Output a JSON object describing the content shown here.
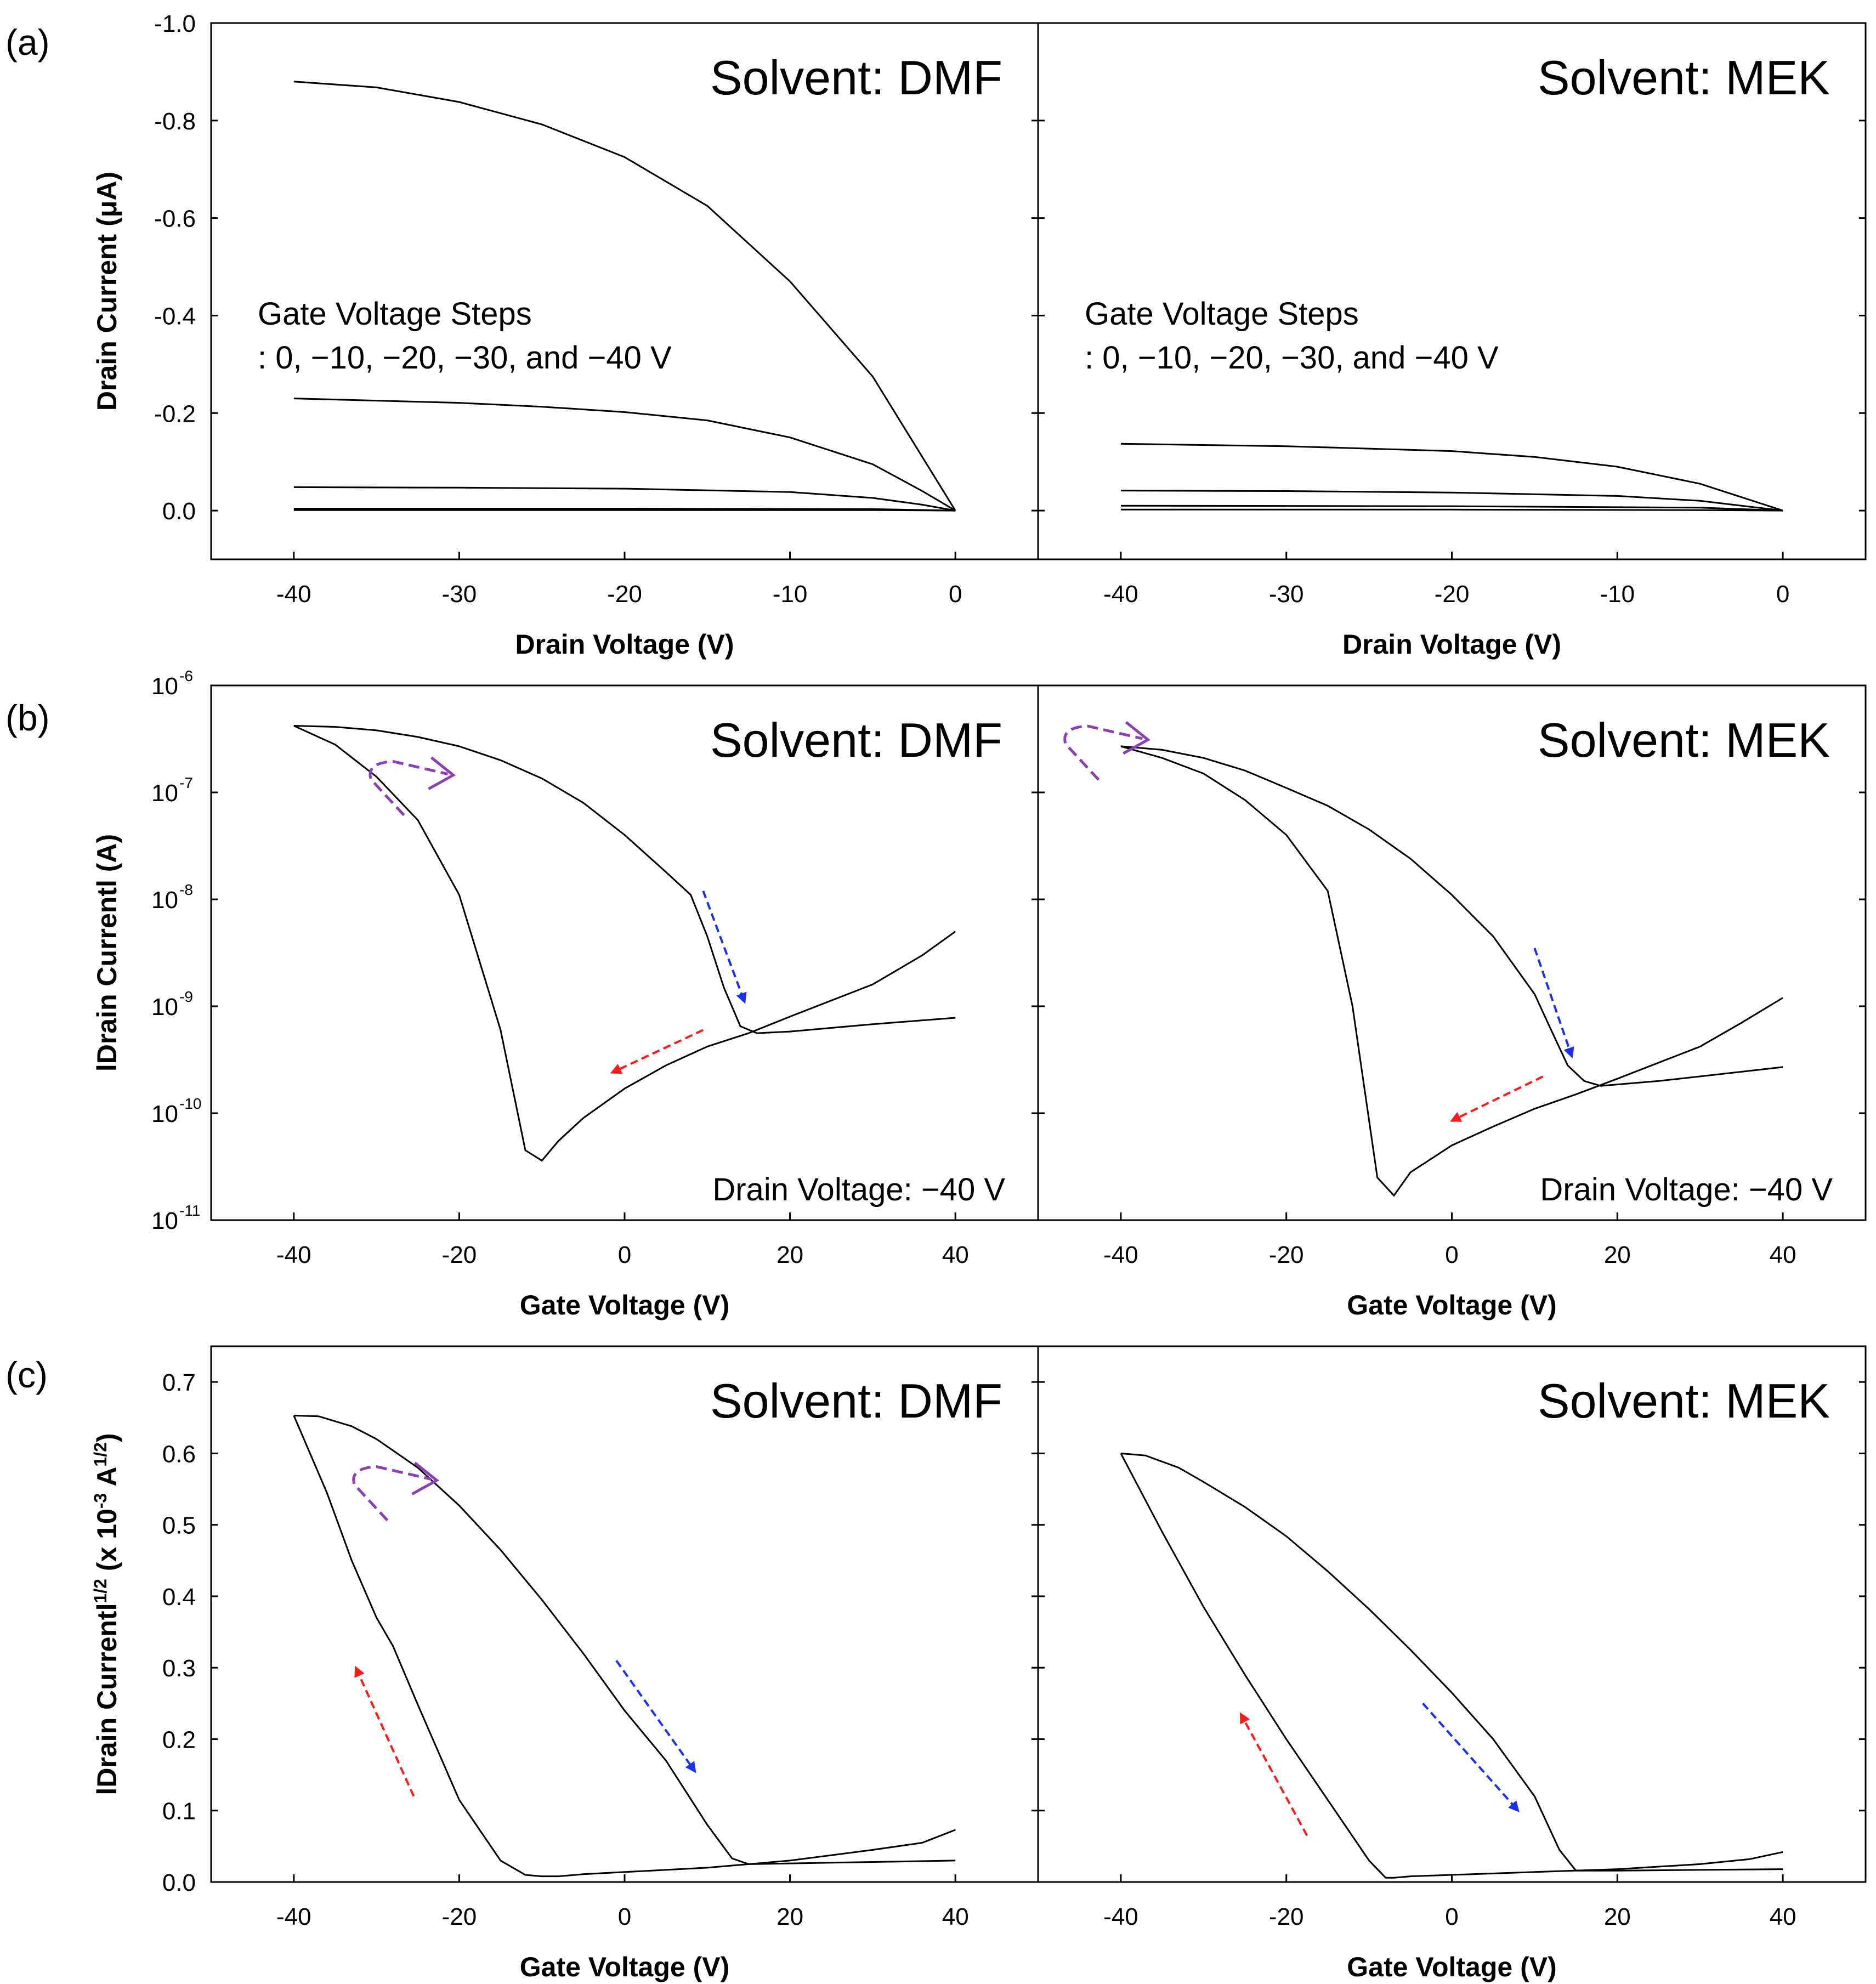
{
  "colors": {
    "background": "#ffffff",
    "curve": "#000000",
    "forward_arrow": "#1a2ff0",
    "reverse_arrow": "#ff1a1a",
    "sweep_direction_arrow": "#8a3fb5"
  },
  "panel_labels": [
    "(a)",
    "(b)",
    "(c)"
  ],
  "chart_data": [
    {
      "id": "a",
      "type": "line",
      "title": "Solvent: DMF",
      "xlabel": "Drain Voltage (V)",
      "ylabel": "Drain Current (μA)",
      "xlim": [
        -45,
        5
      ],
      "ylim": [
        0.1,
        -1.0
      ],
      "xticks": [
        -40,
        -30,
        -20,
        -10,
        0
      ],
      "yticks": [
        0.0,
        -0.2,
        -0.4,
        -0.6,
        -0.8,
        -1.0
      ],
      "ytick_labels": [
        "0.0",
        "-0.2",
        "-0.4",
        "-0.6",
        "-0.8",
        "-1.0"
      ],
      "annotation": [
        "Gate Voltage Steps",
        ": 0, −10, −20, −30, and −40 V"
      ],
      "series": [
        {
          "x": [
            -40,
            -35,
            -30,
            -25,
            -20,
            -15,
            -10,
            -5,
            -2,
            0
          ],
          "y": [
            -0.88,
            -0.868,
            -0.838,
            -0.792,
            -0.725,
            -0.625,
            -0.47,
            -0.275,
            -0.11,
            0.0
          ]
        },
        {
          "x": [
            -40,
            -30,
            -25,
            -20,
            -15,
            -10,
            -5,
            -2,
            0
          ],
          "y": [
            -0.23,
            -0.221,
            -0.213,
            -0.202,
            -0.185,
            -0.15,
            -0.095,
            -0.04,
            0.0
          ]
        },
        {
          "x": [
            -40,
            -30,
            -20,
            -10,
            -5,
            -2,
            0
          ],
          "y": [
            -0.048,
            -0.047,
            -0.045,
            -0.038,
            -0.026,
            -0.012,
            0.0
          ]
        },
        {
          "x": [
            -40,
            -20,
            -5,
            0
          ],
          "y": [
            -0.004,
            -0.004,
            -0.003,
            0.0
          ]
        },
        {
          "x": [
            -40,
            -20,
            -5,
            0
          ],
          "y": [
            -0.001,
            -0.001,
            -0.001,
            0.0
          ]
        }
      ]
    },
    {
      "id": "a2",
      "type": "line",
      "title": "Solvent: MEK",
      "xlabel": "Drain Voltage (V)",
      "xlim": [
        -45,
        5
      ],
      "ylim": [
        0.1,
        -1.0
      ],
      "xticks": [
        -40,
        -30,
        -20,
        -10,
        0
      ],
      "yticks": [
        0.0,
        -0.2,
        -0.4,
        -0.6,
        -0.8,
        -1.0
      ],
      "annotation": [
        "Gate Voltage Steps",
        ": 0, −10, −20, −30, and −40 V"
      ],
      "series": [
        {
          "x": [
            -40,
            -30,
            -20,
            -15,
            -10,
            -5,
            -2,
            0
          ],
          "y": [
            -0.137,
            -0.132,
            -0.122,
            -0.11,
            -0.09,
            -0.055,
            -0.022,
            0.0
          ]
        },
        {
          "x": [
            -40,
            -30,
            -20,
            -10,
            -5,
            -2,
            0
          ],
          "y": [
            -0.041,
            -0.04,
            -0.037,
            -0.03,
            -0.02,
            -0.008,
            0.0
          ]
        },
        {
          "x": [
            -40,
            -20,
            -5,
            0
          ],
          "y": [
            -0.01,
            -0.009,
            -0.006,
            0.0
          ]
        },
        {
          "x": [
            -40,
            -20,
            -5,
            0
          ],
          "y": [
            -0.002,
            -0.002,
            -0.001,
            0.0
          ]
        }
      ]
    },
    {
      "id": "b",
      "type": "line",
      "yscale": "log",
      "title": "Solvent: DMF",
      "xlabel": "Gate Voltage (V)",
      "ylabel": "lDrain Currentl (A)",
      "xlim": [
        -50,
        50
      ],
      "ylim": [
        1e-11,
        1e-06
      ],
      "xticks": [
        -40,
        -20,
        0,
        20,
        40
      ],
      "yticks": [
        1e-11,
        1e-10,
        1e-09,
        1e-08,
        1e-07,
        1e-06
      ],
      "ytick_labels": [
        [
          "10",
          "-11"
        ],
        [
          "10",
          "-10"
        ],
        [
          "10",
          "-9"
        ],
        [
          "10",
          "-8"
        ],
        [
          "10",
          "-7"
        ],
        [
          "10",
          "-6"
        ]
      ],
      "annotation": [
        "Drain Voltage: −40 V"
      ],
      "series": [
        {
          "name": "forward",
          "x": [
            -40,
            -35,
            -30,
            -25,
            -20,
            -15,
            -10,
            -5,
            0,
            5,
            8,
            10,
            12,
            14,
            16,
            20,
            30,
            40
          ],
          "y": [
            4.2e-07,
            4.1e-07,
            3.8e-07,
            3.3e-07,
            2.7e-07,
            2e-07,
            1.35e-07,
            8e-08,
            4e-08,
            1.8e-08,
            1.1e-08,
            4.5e-09,
            1.5e-09,
            6.5e-10,
            5.6e-10,
            5.8e-10,
            6.8e-10,
            7.8e-10
          ]
        },
        {
          "name": "reverse",
          "x": [
            40,
            36,
            30,
            20,
            15,
            10,
            5,
            0,
            -5,
            -8,
            -10,
            -12,
            -15,
            -20,
            -25,
            -30,
            -35,
            -40
          ],
          "y": [
            5e-09,
            3e-09,
            1.6e-09,
            8e-10,
            5.6e-10,
            4.2e-10,
            2.8e-10,
            1.7e-10,
            9e-11,
            5.5e-11,
            3.6e-11,
            4.5e-11,
            6e-10,
            1.1e-08,
            5.5e-08,
            1.4e-07,
            2.8e-07,
            4.2e-07
          ]
        }
      ],
      "arrows": [
        {
          "color": "forward_arrow",
          "from": [
            9.5,
            1.2e-08
          ],
          "to": [
            14.5,
            1.1e-09
          ]
        },
        {
          "color": "reverse_arrow",
          "from": [
            9.5,
            6e-10
          ],
          "to": [
            -1.5,
            2.4e-10
          ]
        }
      ],
      "sweep_marker": {
        "x": -30,
        "y": 1.4e-07
      }
    },
    {
      "id": "b2",
      "type": "line",
      "yscale": "log",
      "title": "Solvent: MEK",
      "xlabel": "Gate Voltage (V)",
      "xlim": [
        -50,
        50
      ],
      "ylim": [
        1e-11,
        1e-06
      ],
      "xticks": [
        -40,
        -20,
        0,
        20,
        40
      ],
      "yticks": [
        1e-11,
        1e-10,
        1e-09,
        1e-08,
        1e-07,
        1e-06
      ],
      "annotation": [
        "Drain Voltage: −40 V"
      ],
      "series": [
        {
          "name": "forward",
          "x": [
            -40,
            -35,
            -30,
            -25,
            -20,
            -15,
            -10,
            -5,
            0,
            5,
            10,
            12,
            14,
            16,
            18,
            25,
            32,
            40
          ],
          "y": [
            2.7e-07,
            2.5e-07,
            2.1e-07,
            1.6e-07,
            1.1e-07,
            7.5e-08,
            4.5e-08,
            2.4e-08,
            1.1e-08,
            4.5e-09,
            1.3e-09,
            6e-10,
            2.8e-10,
            2e-10,
            1.8e-10,
            2e-10,
            2.3e-10,
            2.7e-10
          ]
        },
        {
          "name": "reverse",
          "x": [
            40,
            35,
            30,
            20,
            15,
            10,
            5,
            0,
            -5,
            -7,
            -9,
            -12,
            -15,
            -20,
            -25,
            -30,
            -35,
            -40
          ],
          "y": [
            1.2e-09,
            7e-10,
            4.2e-10,
            2.1e-10,
            1.5e-10,
            1.1e-10,
            7.5e-11,
            5e-11,
            2.8e-11,
            1.7e-11,
            2.5e-11,
            1e-09,
            1.2e-08,
            4e-08,
            8.5e-08,
            1.5e-07,
            2.1e-07,
            2.7e-07
          ]
        }
      ],
      "arrows": [
        {
          "color": "forward_arrow",
          "from": [
            10,
            3.5e-09
          ],
          "to": [
            14.5,
            3.4e-10
          ]
        },
        {
          "color": "reverse_arrow",
          "from": [
            11,
            2.2e-10
          ],
          "to": [
            0,
            8.5e-11
          ]
        }
      ],
      "sweep_marker": {
        "x": -46,
        "y": 3e-07
      }
    },
    {
      "id": "c",
      "type": "line",
      "title": "Solvent: DMF",
      "xlabel": "Gate Voltage (V)",
      "ylabel": "lDrain Currentl^1/2 (x 10^-3 A^1/2)",
      "ylabel_parts": {
        "pre": "lDrain Currentl",
        "sup1": "1/2",
        "mid": " (x 10",
        "sup2": "-3",
        "post1": " A",
        "sup3": "1/2",
        "post2": ")"
      },
      "xlim": [
        -50,
        50
      ],
      "ylim": [
        0.0,
        0.75
      ],
      "xticks": [
        -40,
        -20,
        0,
        20,
        40
      ],
      "yticks": [
        0.0,
        0.1,
        0.2,
        0.3,
        0.4,
        0.5,
        0.6,
        0.7
      ],
      "ytick_labels": [
        "0.0",
        "0.1",
        "0.2",
        "0.3",
        "0.4",
        "0.5",
        "0.6",
        "0.7"
      ],
      "series": [
        {
          "name": "forward",
          "x": [
            -40,
            -37,
            -33,
            -30,
            -25,
            -20,
            -15,
            -10,
            -5,
            0,
            5,
            10,
            13,
            15,
            20,
            30,
            40
          ],
          "y": [
            0.653,
            0.652,
            0.638,
            0.62,
            0.58,
            0.527,
            0.465,
            0.395,
            0.32,
            0.24,
            0.17,
            0.08,
            0.033,
            0.025,
            0.026,
            0.028,
            0.03
          ]
        },
        {
          "name": "reverse",
          "x": [
            40,
            36,
            30,
            20,
            10,
            0,
            -5,
            -8,
            -10,
            -12,
            -15,
            -20,
            -25,
            -28,
            -30,
            -33,
            -36,
            -40
          ],
          "y": [
            0.073,
            0.055,
            0.045,
            0.03,
            0.02,
            0.014,
            0.011,
            0.008,
            0.008,
            0.01,
            0.03,
            0.115,
            0.248,
            0.33,
            0.37,
            0.45,
            0.545,
            0.653
          ]
        }
      ],
      "arrows": [
        {
          "color": "forward_arrow",
          "from": [
            -1,
            0.31
          ],
          "to": [
            8.5,
            0.155
          ]
        },
        {
          "color": "reverse_arrow",
          "from": [
            -25.5,
            0.12
          ],
          "to": [
            -32.5,
            0.3
          ]
        }
      ],
      "sweep_marker": {
        "x": -32,
        "y": 0.56
      }
    },
    {
      "id": "c2",
      "type": "line",
      "title": "Solvent: MEK",
      "xlabel": "Gate Voltage (V)",
      "xlim": [
        -50,
        50
      ],
      "ylim": [
        0.0,
        0.75
      ],
      "xticks": [
        -40,
        -20,
        0,
        20,
        40
      ],
      "yticks": [
        0.0,
        0.1,
        0.2,
        0.3,
        0.4,
        0.5,
        0.6,
        0.7
      ],
      "series": [
        {
          "name": "forward",
          "x": [
            -40,
            -37,
            -33,
            -30,
            -25,
            -20,
            -15,
            -10,
            -5,
            0,
            5,
            10,
            13,
            15,
            20,
            30,
            40
          ],
          "y": [
            0.6,
            0.597,
            0.58,
            0.56,
            0.525,
            0.484,
            0.435,
            0.382,
            0.325,
            0.265,
            0.2,
            0.12,
            0.045,
            0.016,
            0.016,
            0.017,
            0.018
          ]
        },
        {
          "name": "reverse",
          "x": [
            40,
            36,
            30,
            20,
            10,
            0,
            -5,
            -7,
            -8,
            -10,
            -15,
            -20,
            -25,
            -30,
            -35,
            -40
          ],
          "y": [
            0.042,
            0.032,
            0.025,
            0.018,
            0.014,
            0.01,
            0.008,
            0.006,
            0.006,
            0.03,
            0.115,
            0.2,
            0.29,
            0.385,
            0.49,
            0.6
          ]
        }
      ],
      "arrows": [
        {
          "color": "forward_arrow",
          "from": [
            -3.5,
            0.25
          ],
          "to": [
            8,
            0.1
          ]
        },
        {
          "color": "reverse_arrow",
          "from": [
            -17.5,
            0.065
          ],
          "to": [
            -25.5,
            0.235
          ]
        }
      ]
    }
  ]
}
